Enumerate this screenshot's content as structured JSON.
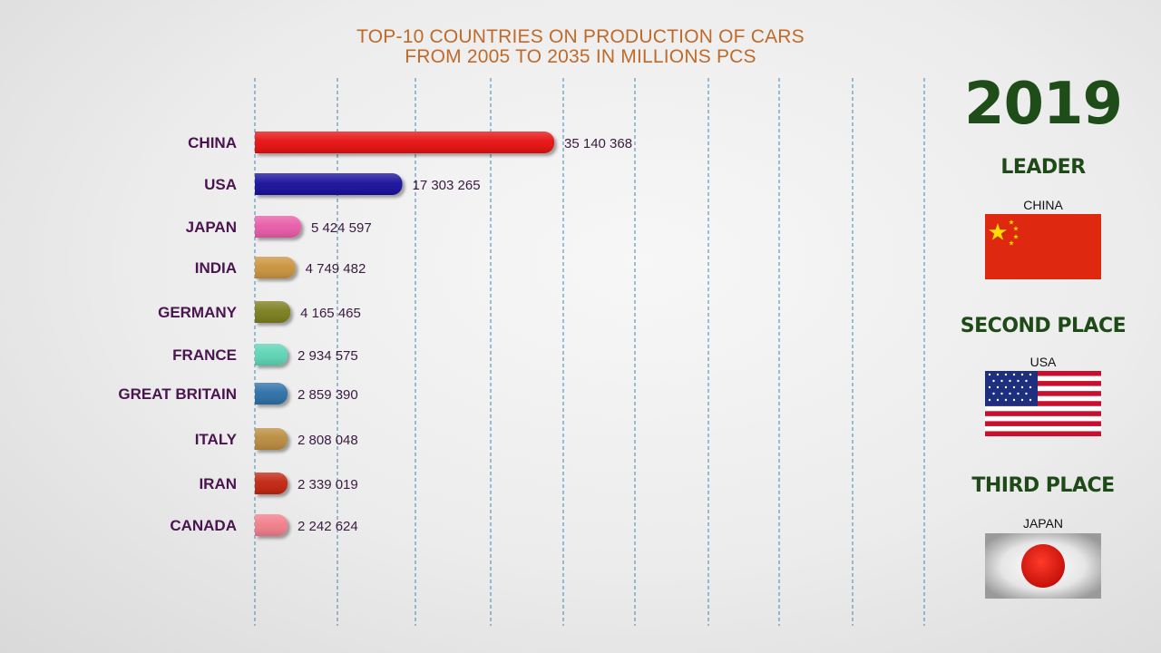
{
  "title_line1": "TOP-10 COUNTRIES ON PRODUCTION OF CARS",
  "title_line2": "FROM 2005 TO 2035 IN MILLIONS PCS",
  "year": "2019",
  "leader": {
    "heading": "LEADER",
    "country": "CHINA",
    "flag_icon": "china-flag-icon"
  },
  "second_place": {
    "heading": "SECOND PLACE",
    "country": "USA",
    "flag_icon": "usa-flag-icon"
  },
  "third_place": {
    "heading": "THIRD PLACE",
    "country": "JAPAN",
    "flag_icon": "japan-flag-icon"
  },
  "chart_data": {
    "type": "bar",
    "orientation": "horizontal",
    "title": "TOP-10 COUNTRIES ON PRODUCTION OF CARS FROM 2005 TO 2035 IN MILLIONS PCS",
    "categories": [
      "CHINA",
      "USA",
      "JAPAN",
      "INDIA",
      "GERMANY",
      "FRANCE",
      "GREAT BRITAIN",
      "ITALY",
      "IRAN",
      "CANADA"
    ],
    "values": [
      35140368,
      17303265,
      5424597,
      4749482,
      4165465,
      2934575,
      2859390,
      2808048,
      2339019,
      2242624
    ],
    "value_labels": [
      "35 140 368",
      "17 303 265",
      "5 424 597",
      "4 749 482",
      "4 165 465",
      "2 934 575",
      "2 859 390",
      "2 808 048",
      "2 339 019",
      "2 242 624"
    ],
    "colors": [
      "#e60b0b",
      "#16089a",
      "#e75aa6",
      "#c9923a",
      "#7a7c1c",
      "#5cd3b5",
      "#2a6ea6",
      "#b98a3c",
      "#c0200e",
      "#f07b88"
    ],
    "grid": true,
    "gridlines": 10,
    "legend": "none"
  }
}
